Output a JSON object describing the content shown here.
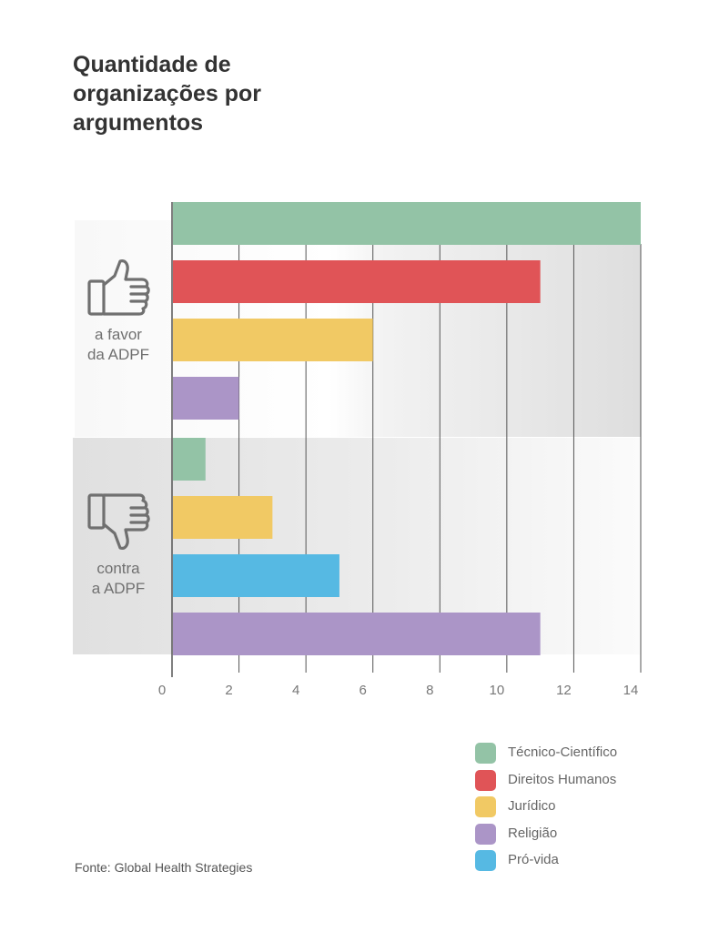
{
  "title": "Quantidade de organizações por argumentos",
  "source": "Fonte:  Global Health Strategies",
  "groups": {
    "favor": {
      "icon": "thumbs-up-icon",
      "line1": "a favor",
      "line2": "da ADPF"
    },
    "contra": {
      "icon": "thumbs-down-icon",
      "line1": "contra",
      "line2": "a ADPF"
    }
  },
  "colors": {
    "grid": "#555555",
    "band_favor": "#e2e2e2",
    "band_contra": "#e2e2e2",
    "axis_text": "#777777"
  },
  "chart_data": {
    "type": "bar",
    "orientation": "horizontal",
    "xlim": [
      0,
      14
    ],
    "xticks": [
      0,
      2,
      4,
      6,
      8,
      10,
      12,
      14
    ],
    "grid": true,
    "groups": [
      {
        "name": "a favor da ADPF",
        "bars": [
          {
            "series": "Técnico-Científico",
            "value": 14
          },
          {
            "series": "Direitos Humanos",
            "value": 11
          },
          {
            "series": "Jurídico",
            "value": 6
          },
          {
            "series": "Religião",
            "value": 2
          }
        ]
      },
      {
        "name": "contra a ADPF",
        "bars": [
          {
            "series": "Técnico-Científico",
            "value": 1
          },
          {
            "series": "Jurídico",
            "value": 3
          },
          {
            "series": "Pró-vida",
            "value": 5
          },
          {
            "series": "Religião",
            "value": 11
          }
        ]
      }
    ],
    "legend": [
      {
        "name": "Técnico-Científico",
        "color": "#93c3a6"
      },
      {
        "name": "Direitos Humanos",
        "color": "#e05457"
      },
      {
        "name": "Jurídico",
        "color": "#f1c964"
      },
      {
        "name": "Religião",
        "color": "#ab95c7"
      },
      {
        "name": "Pró-vida",
        "color": "#56b9e3"
      }
    ],
    "legend_position": "bottom-right"
  }
}
